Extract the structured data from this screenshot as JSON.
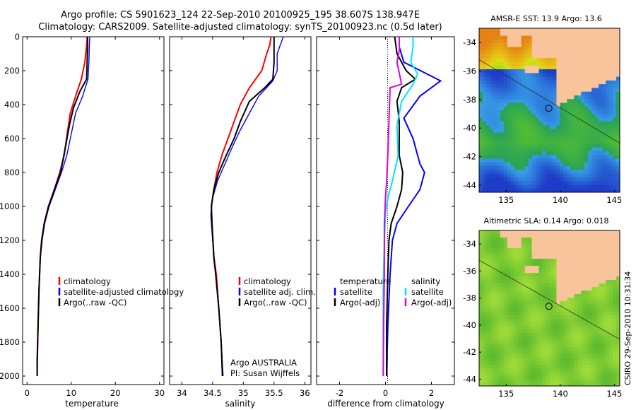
{
  "titles": {
    "line1": "Argo profile: CS 5901623_124 22-Sep-2010 20100925_195 38.607S 138.947E",
    "line2": "Climatology: CARS2009. Satellite-adjusted climatology: synTS_20100923.nc (0.5d later)"
  },
  "annotations": {
    "program": "Argo AUSTRALIA",
    "pi": "PI: Susan Wijffels"
  },
  "footer": {
    "timestamp": "CSIRO 29-Sep-2010 10:31:34"
  },
  "colors": {
    "climatology": "#ff0000",
    "satellite": "#0000ff",
    "argo": "#000000",
    "salinity_satellite": "#00e5ff",
    "salinity_argo": "#e000e0",
    "land": "#f9c49b"
  },
  "chart_data": [
    {
      "type": "line",
      "xlabel": "temperature",
      "ylabel": "",
      "xlim": [
        -1,
        31
      ],
      "ylim": [
        0,
        2050
      ],
      "xticks": [
        0,
        10,
        20,
        30
      ],
      "yticks": [
        0,
        200,
        400,
        600,
        800,
        1000,
        1200,
        1400,
        1600,
        1800,
        2000
      ],
      "y_reversed": true,
      "series": [
        {
          "name": "climatology",
          "color": "#ff0000",
          "points": [
            [
              13.6,
              0
            ],
            [
              13.5,
              50
            ],
            [
              13.1,
              150
            ],
            [
              12.3,
              250
            ],
            [
              11.0,
              350
            ],
            [
              9.8,
              450
            ],
            [
              9.2,
              550
            ],
            [
              8.4,
              700
            ],
            [
              7.4,
              800
            ],
            [
              6.2,
              900
            ],
            [
              4.8,
              1000
            ],
            [
              3.9,
              1100
            ],
            [
              3.4,
              1200
            ],
            [
              3.0,
              1300
            ],
            [
              2.7,
              1500
            ],
            [
              2.5,
              1700
            ],
            [
              2.35,
              1900
            ],
            [
              2.3,
              2000
            ]
          ]
        },
        {
          "name": "satellite-adjusted climatology",
          "color": "#0000ff",
          "points": [
            [
              14.2,
              0
            ],
            [
              14.1,
              50
            ],
            [
              14.0,
              150
            ],
            [
              13.8,
              250
            ],
            [
              12.6,
              350
            ],
            [
              11.0,
              450
            ],
            [
              10.2,
              550
            ],
            [
              9.0,
              700
            ],
            [
              7.8,
              800
            ],
            [
              6.4,
              900
            ],
            [
              5.0,
              1000
            ],
            [
              4.0,
              1100
            ],
            [
              3.4,
              1200
            ],
            [
              3.0,
              1300
            ],
            [
              2.7,
              1500
            ],
            [
              2.5,
              1700
            ],
            [
              2.35,
              1900
            ],
            [
              2.3,
              2000
            ]
          ]
        },
        {
          "name": "Argo(..raw -QC)",
          "color": "#000000",
          "points": [
            [
              13.7,
              0
            ],
            [
              13.7,
              50
            ],
            [
              13.6,
              150
            ],
            [
              13.5,
              250
            ],
            [
              12.0,
              320
            ],
            [
              10.5,
              420
            ],
            [
              9.6,
              520
            ],
            [
              8.7,
              650
            ],
            [
              7.6,
              800
            ],
            [
              6.2,
              900
            ],
            [
              4.9,
              1000
            ],
            [
              3.9,
              1100
            ],
            [
              3.3,
              1200
            ],
            [
              3.0,
              1300
            ],
            [
              2.7,
              1500
            ],
            [
              2.5,
              1700
            ],
            [
              2.3,
              1900
            ],
            [
              2.3,
              2000
            ]
          ]
        }
      ]
    },
    {
      "type": "line",
      "xlabel": "salinity",
      "ylabel": "",
      "xlim": [
        33.8,
        36.1
      ],
      "ylim": [
        0,
        2050
      ],
      "xticks": [
        34,
        34.5,
        35,
        35.5,
        36
      ],
      "yticks": [
        0,
        200,
        400,
        600,
        800,
        1000,
        1200,
        1400,
        1600,
        1800,
        2000
      ],
      "y_reversed": true,
      "series": [
        {
          "name": "climatology",
          "color": "#ff0000",
          "points": [
            [
              35.45,
              0
            ],
            [
              35.43,
              50
            ],
            [
              35.38,
              100
            ],
            [
              35.3,
              200
            ],
            [
              35.1,
              300
            ],
            [
              34.95,
              400
            ],
            [
              34.85,
              500
            ],
            [
              34.75,
              600
            ],
            [
              34.65,
              700
            ],
            [
              34.57,
              800
            ],
            [
              34.52,
              900
            ],
            [
              34.48,
              1000
            ],
            [
              34.49,
              1100
            ],
            [
              34.52,
              1300
            ],
            [
              34.56,
              1400
            ],
            [
              34.6,
              1600
            ],
            [
              34.64,
              1800
            ],
            [
              34.66,
              2000
            ]
          ]
        },
        {
          "name": "satellite adj. clim.",
          "color": "#0000ff",
          "points": [
            [
              35.65,
              0
            ],
            [
              35.6,
              50
            ],
            [
              35.55,
              100
            ],
            [
              35.55,
              200
            ],
            [
              35.48,
              260
            ],
            [
              35.25,
              350
            ],
            [
              35.1,
              450
            ],
            [
              34.95,
              550
            ],
            [
              34.82,
              650
            ],
            [
              34.7,
              750
            ],
            [
              34.58,
              850
            ],
            [
              34.5,
              950
            ],
            [
              34.47,
              1050
            ],
            [
              34.5,
              1200
            ],
            [
              34.55,
              1400
            ],
            [
              34.6,
              1600
            ],
            [
              34.64,
              1800
            ],
            [
              34.67,
              2000
            ]
          ]
        },
        {
          "name": "Argo(..raw -QC)",
          "color": "#000000",
          "points": [
            [
              35.5,
              0
            ],
            [
              35.5,
              50
            ],
            [
              35.5,
              150
            ],
            [
              35.48,
              250
            ],
            [
              35.35,
              300
            ],
            [
              35.1,
              380
            ],
            [
              34.95,
              500
            ],
            [
              34.85,
              600
            ],
            [
              34.72,
              700
            ],
            [
              34.6,
              800
            ],
            [
              34.52,
              900
            ],
            [
              34.48,
              1000
            ],
            [
              34.49,
              1100
            ],
            [
              34.52,
              1300
            ],
            [
              34.55,
              1400
            ],
            [
              34.6,
              1600
            ],
            [
              34.64,
              1800
            ],
            [
              34.66,
              2000
            ]
          ]
        }
      ]
    },
    {
      "type": "line",
      "xlabel": "difference from climatology",
      "ylabel": "",
      "xlim": [
        -3.0,
        3.0
      ],
      "ylim": [
        0,
        2050
      ],
      "xticks": [
        -2,
        0,
        2
      ],
      "yticks": [
        0,
        200,
        400,
        600,
        800,
        1000,
        1200,
        1400,
        1600,
        1800,
        2000
      ],
      "y_reversed": true,
      "legend": {
        "temperature_heading": "temperature",
        "salinity_heading": "salinity"
      },
      "series": [
        {
          "name": "satellite",
          "color": "#0000ff",
          "group": "temperature",
          "points": [
            [
              0.6,
              0
            ],
            [
              0.6,
              60
            ],
            [
              0.8,
              150
            ],
            [
              2.4,
              260
            ],
            [
              1.5,
              350
            ],
            [
              0.8,
              480
            ],
            [
              1.2,
              600
            ],
            [
              1.5,
              750
            ],
            [
              1.7,
              800
            ],
            [
              1.5,
              900
            ],
            [
              1.0,
              1000
            ],
            [
              0.5,
              1100
            ],
            [
              0.3,
              1200
            ],
            [
              0.2,
              1400
            ],
            [
              0.1,
              1700
            ],
            [
              0.05,
              2000
            ]
          ]
        },
        {
          "name": "Argo(-adj)",
          "color": "#000000",
          "group": "temperature",
          "points": [
            [
              0.4,
              0
            ],
            [
              0.5,
              100
            ],
            [
              0.9,
              200
            ],
            [
              1.3,
              250
            ],
            [
              0.7,
              300
            ],
            [
              0.5,
              380
            ],
            [
              0.6,
              500
            ],
            [
              0.6,
              700
            ],
            [
              0.75,
              800
            ],
            [
              0.7,
              900
            ],
            [
              0.5,
              1000
            ],
            [
              0.25,
              1100
            ],
            [
              0.15,
              1200
            ],
            [
              0.1,
              1400
            ],
            [
              0.05,
              1700
            ],
            [
              0.05,
              2000
            ]
          ]
        },
        {
          "name": "satellite",
          "color": "#00e5ff",
          "group": "salinity",
          "points": [
            [
              1.2,
              0
            ],
            [
              1.2,
              60
            ],
            [
              1.1,
              150
            ],
            [
              1.4,
              220
            ],
            [
              1.2,
              280
            ],
            [
              0.7,
              380
            ],
            [
              0.5,
              520
            ],
            [
              0.55,
              700
            ],
            [
              0.3,
              850
            ],
            [
              0.1,
              950
            ],
            [
              0.0,
              1050
            ],
            [
              -0.05,
              1200
            ],
            [
              -0.1,
              1500
            ],
            [
              -0.1,
              1800
            ],
            [
              -0.1,
              2000
            ]
          ]
        },
        {
          "name": "Argo(-adj)",
          "color": "#e000e0",
          "group": "salinity",
          "points": [
            [
              0.6,
              0
            ],
            [
              0.6,
              80
            ],
            [
              0.5,
              150
            ],
            [
              0.7,
              280
            ],
            [
              0.2,
              300
            ],
            [
              0.15,
              500
            ],
            [
              0.1,
              700
            ],
            [
              0.05,
              850
            ],
            [
              0.0,
              950
            ],
            [
              -0.05,
              1100
            ],
            [
              -0.05,
              1400
            ],
            [
              -0.08,
              1700
            ],
            [
              -0.1,
              2000
            ]
          ]
        }
      ]
    }
  ],
  "maps": [
    {
      "title": "AMSR-E SST: 13.9 Argo: 13.6",
      "field": "sst",
      "lon_range": [
        132.5,
        145.5
      ],
      "lat_range": [
        -44.5,
        -33
      ],
      "xticks": [
        135,
        140,
        145
      ],
      "yticks": [
        -34,
        -36,
        -38,
        -40,
        -42,
        -44
      ],
      "profile_location": {
        "lon": 138.947,
        "lat": -38.607
      }
    },
    {
      "title": "Altimetric SLA: 0.14 Argo: 0.018",
      "field": "sla",
      "lon_range": [
        132.5,
        145.5
      ],
      "lat_range": [
        -44.5,
        -33
      ],
      "xticks": [
        135,
        140,
        145
      ],
      "yticks": [
        -34,
        -36,
        -38,
        -40,
        -42,
        -44
      ],
      "profile_location": {
        "lon": 138.947,
        "lat": -38.607
      }
    }
  ]
}
